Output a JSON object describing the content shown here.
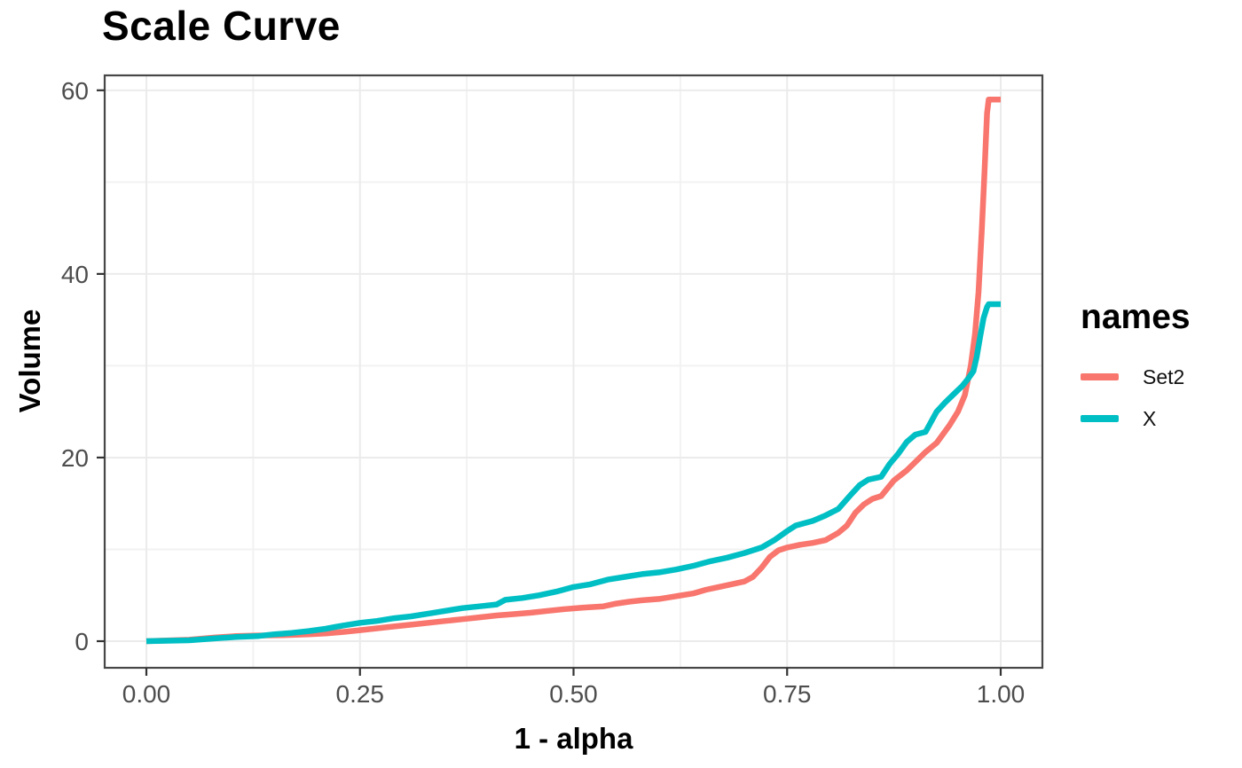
{
  "chart_data": {
    "type": "line",
    "title": "Scale Curve",
    "xlabel": "1 - alpha",
    "ylabel": "Volume",
    "xlim": [
      0,
      1.0
    ],
    "ylim": [
      0,
      60
    ],
    "grid": "on",
    "x_ticks": {
      "values": [
        0,
        0.25,
        0.5,
        0.75,
        1.0
      ],
      "labels": [
        "0.00",
        "0.25",
        "0.50",
        "0.75",
        "1.00"
      ]
    },
    "y_ticks": {
      "values": [
        0,
        20,
        40,
        60
      ],
      "labels": [
        "0",
        "20",
        "40",
        "60"
      ]
    },
    "x_minor": [
      0.125,
      0.375,
      0.625,
      0.875
    ],
    "y_minor": [
      10,
      30,
      50
    ],
    "legend": {
      "title": "names",
      "position": "right"
    },
    "series": [
      {
        "name": "Set2",
        "color": "#F8766D",
        "points": [
          [
            0.0,
            0.0
          ],
          [
            0.05,
            0.15
          ],
          [
            0.08,
            0.4
          ],
          [
            0.105,
            0.55
          ],
          [
            0.13,
            0.62
          ],
          [
            0.16,
            0.65
          ],
          [
            0.19,
            0.75
          ],
          [
            0.21,
            0.85
          ],
          [
            0.23,
            1.0
          ],
          [
            0.25,
            1.2
          ],
          [
            0.27,
            1.4
          ],
          [
            0.29,
            1.6
          ],
          [
            0.31,
            1.8
          ],
          [
            0.33,
            2.0
          ],
          [
            0.35,
            2.2
          ],
          [
            0.37,
            2.4
          ],
          [
            0.39,
            2.6
          ],
          [
            0.41,
            2.8
          ],
          [
            0.43,
            2.95
          ],
          [
            0.45,
            3.1
          ],
          [
            0.47,
            3.3
          ],
          [
            0.49,
            3.5
          ],
          [
            0.51,
            3.65
          ],
          [
            0.535,
            3.8
          ],
          [
            0.55,
            4.1
          ],
          [
            0.565,
            4.3
          ],
          [
            0.58,
            4.45
          ],
          [
            0.6,
            4.6
          ],
          [
            0.62,
            4.9
          ],
          [
            0.64,
            5.2
          ],
          [
            0.655,
            5.6
          ],
          [
            0.67,
            5.9
          ],
          [
            0.685,
            6.2
          ],
          [
            0.7,
            6.5
          ],
          [
            0.71,
            7.0
          ],
          [
            0.72,
            8.0
          ],
          [
            0.73,
            9.2
          ],
          [
            0.74,
            9.9
          ],
          [
            0.75,
            10.2
          ],
          [
            0.765,
            10.5
          ],
          [
            0.78,
            10.7
          ],
          [
            0.795,
            11.0
          ],
          [
            0.81,
            11.8
          ],
          [
            0.82,
            12.6
          ],
          [
            0.83,
            14.0
          ],
          [
            0.84,
            14.9
          ],
          [
            0.85,
            15.5
          ],
          [
            0.86,
            15.8
          ],
          [
            0.875,
            17.5
          ],
          [
            0.89,
            18.6
          ],
          [
            0.9,
            19.5
          ],
          [
            0.912,
            20.6
          ],
          [
            0.925,
            21.6
          ],
          [
            0.94,
            23.5
          ],
          [
            0.95,
            25.0
          ],
          [
            0.958,
            26.8
          ],
          [
            0.965,
            30.0
          ],
          [
            0.97,
            33.5
          ],
          [
            0.974,
            38.0
          ],
          [
            0.978,
            45.0
          ],
          [
            0.981,
            51.0
          ],
          [
            0.984,
            57.5
          ],
          [
            0.986,
            59.0
          ],
          [
            1.0,
            59.0
          ]
        ]
      },
      {
        "name": "X",
        "color": "#00BFC4",
        "points": [
          [
            0.0,
            0.0
          ],
          [
            0.05,
            0.1
          ],
          [
            0.08,
            0.3
          ],
          [
            0.105,
            0.45
          ],
          [
            0.13,
            0.55
          ],
          [
            0.15,
            0.75
          ],
          [
            0.17,
            0.9
          ],
          [
            0.19,
            1.1
          ],
          [
            0.21,
            1.35
          ],
          [
            0.23,
            1.7
          ],
          [
            0.25,
            2.0
          ],
          [
            0.27,
            2.2
          ],
          [
            0.29,
            2.5
          ],
          [
            0.31,
            2.7
          ],
          [
            0.33,
            3.0
          ],
          [
            0.35,
            3.3
          ],
          [
            0.37,
            3.6
          ],
          [
            0.39,
            3.8
          ],
          [
            0.41,
            4.0
          ],
          [
            0.42,
            4.5
          ],
          [
            0.44,
            4.7
          ],
          [
            0.46,
            5.0
          ],
          [
            0.48,
            5.4
          ],
          [
            0.5,
            5.9
          ],
          [
            0.52,
            6.2
          ],
          [
            0.54,
            6.7
          ],
          [
            0.56,
            7.0
          ],
          [
            0.58,
            7.3
          ],
          [
            0.6,
            7.5
          ],
          [
            0.62,
            7.8
          ],
          [
            0.64,
            8.2
          ],
          [
            0.66,
            8.7
          ],
          [
            0.68,
            9.1
          ],
          [
            0.7,
            9.6
          ],
          [
            0.72,
            10.2
          ],
          [
            0.735,
            11.0
          ],
          [
            0.75,
            12.0
          ],
          [
            0.76,
            12.6
          ],
          [
            0.78,
            13.1
          ],
          [
            0.795,
            13.7
          ],
          [
            0.81,
            14.4
          ],
          [
            0.825,
            16.0
          ],
          [
            0.835,
            17.0
          ],
          [
            0.845,
            17.6
          ],
          [
            0.86,
            17.9
          ],
          [
            0.87,
            19.3
          ],
          [
            0.88,
            20.4
          ],
          [
            0.89,
            21.7
          ],
          [
            0.9,
            22.5
          ],
          [
            0.912,
            22.8
          ],
          [
            0.925,
            25.0
          ],
          [
            0.935,
            26.0
          ],
          [
            0.945,
            26.9
          ],
          [
            0.955,
            27.8
          ],
          [
            0.962,
            28.6
          ],
          [
            0.968,
            29.4
          ],
          [
            0.972,
            31.0
          ],
          [
            0.976,
            33.2
          ],
          [
            0.98,
            35.2
          ],
          [
            0.984,
            36.4
          ],
          [
            0.986,
            36.7
          ],
          [
            1.0,
            36.7
          ]
        ]
      }
    ]
  },
  "colors": {
    "grid_major": "#EBEBEB",
    "grid_minor": "#F2F2F2",
    "panel_border": "#474747",
    "tick_mark": "#333333",
    "tick_label": "#4D4D4D",
    "text": "#000000",
    "background": "#FFFFFF"
  }
}
